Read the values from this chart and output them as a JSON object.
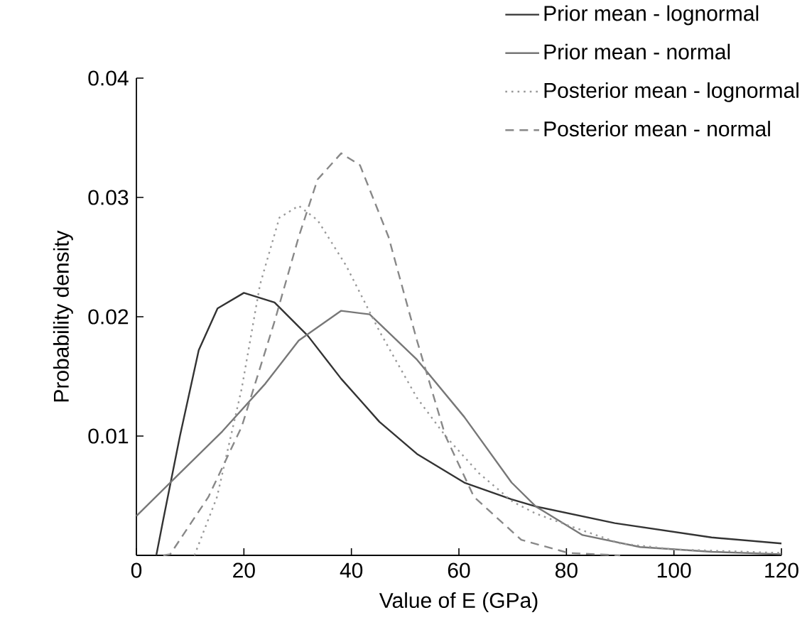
{
  "chart_data": {
    "type": "line",
    "xlabel": "Value of E (GPa)",
    "ylabel": "Probability density",
    "xlim": [
      0,
      120
    ],
    "ylim": [
      0,
      0.04
    ],
    "xticks": [
      0,
      20,
      40,
      60,
      80,
      100,
      120
    ],
    "yticks": [
      0.01,
      0.02,
      0.03,
      0.04
    ],
    "legend": "top right",
    "series": [
      {
        "name": "Prior mean - lognormal",
        "color": "#333333",
        "line_style": "solid",
        "x": [
          3.7,
          5,
          8.1,
          11.6,
          15.1,
          20,
          25.7,
          31.9,
          38.1,
          45.2,
          52.2,
          61,
          69.8,
          74.3,
          89,
          107,
          120
        ],
        "values": [
          0,
          0.003,
          0.01,
          0.0172,
          0.0207,
          0.022,
          0.0212,
          0.0184,
          0.0148,
          0.0112,
          0.0085,
          0.0061,
          0.0047,
          0.0041,
          0.0027,
          0.0015,
          0.001
        ]
      },
      {
        "name": "Prior mean - normal",
        "color": "#777777",
        "line_style": "solid",
        "x": [
          0,
          8.1,
          16,
          24,
          30.2,
          38.1,
          43.4,
          52.2,
          61,
          69.8,
          74.3,
          83,
          93.7,
          107,
          120
        ],
        "values": [
          0.0033,
          0.0069,
          0.0104,
          0.0144,
          0.018,
          0.0205,
          0.0202,
          0.0164,
          0.0116,
          0.0061,
          0.0041,
          0.0017,
          0.0007,
          0.0003,
          0.0001
        ]
      },
      {
        "name": "Posterior mean - lognormal",
        "color": "#999999",
        "line_style": "dotted",
        "x": [
          10.8,
          15,
          19.6,
          23,
          26.6,
          30.2,
          33.7,
          39,
          45.2,
          52.2,
          57.5,
          63.7,
          70,
          74.3,
          80.4,
          90,
          100,
          120
        ],
        "values": [
          0,
          0.0049,
          0.014,
          0.0227,
          0.0283,
          0.0293,
          0.0281,
          0.0243,
          0.0188,
          0.0132,
          0.01,
          0.0069,
          0.0045,
          0.0035,
          0.0025,
          0.001,
          0.0005,
          0.0002
        ]
      },
      {
        "name": "Posterior mean - normal",
        "color": "#888888",
        "line_style": "dashed",
        "x": [
          5,
          6.3,
          13.4,
          19.6,
          25.7,
          30.2,
          33.7,
          38.1,
          41.6,
          46.9,
          52.2,
          57.5,
          62.8,
          71.6,
          80.4,
          90
        ],
        "values": [
          0,
          0.0001,
          0.0049,
          0.0108,
          0.0196,
          0.0267,
          0.0315,
          0.0337,
          0.0327,
          0.0267,
          0.018,
          0.01,
          0.0049,
          0.0013,
          0.0002,
          0
        ]
      }
    ]
  }
}
